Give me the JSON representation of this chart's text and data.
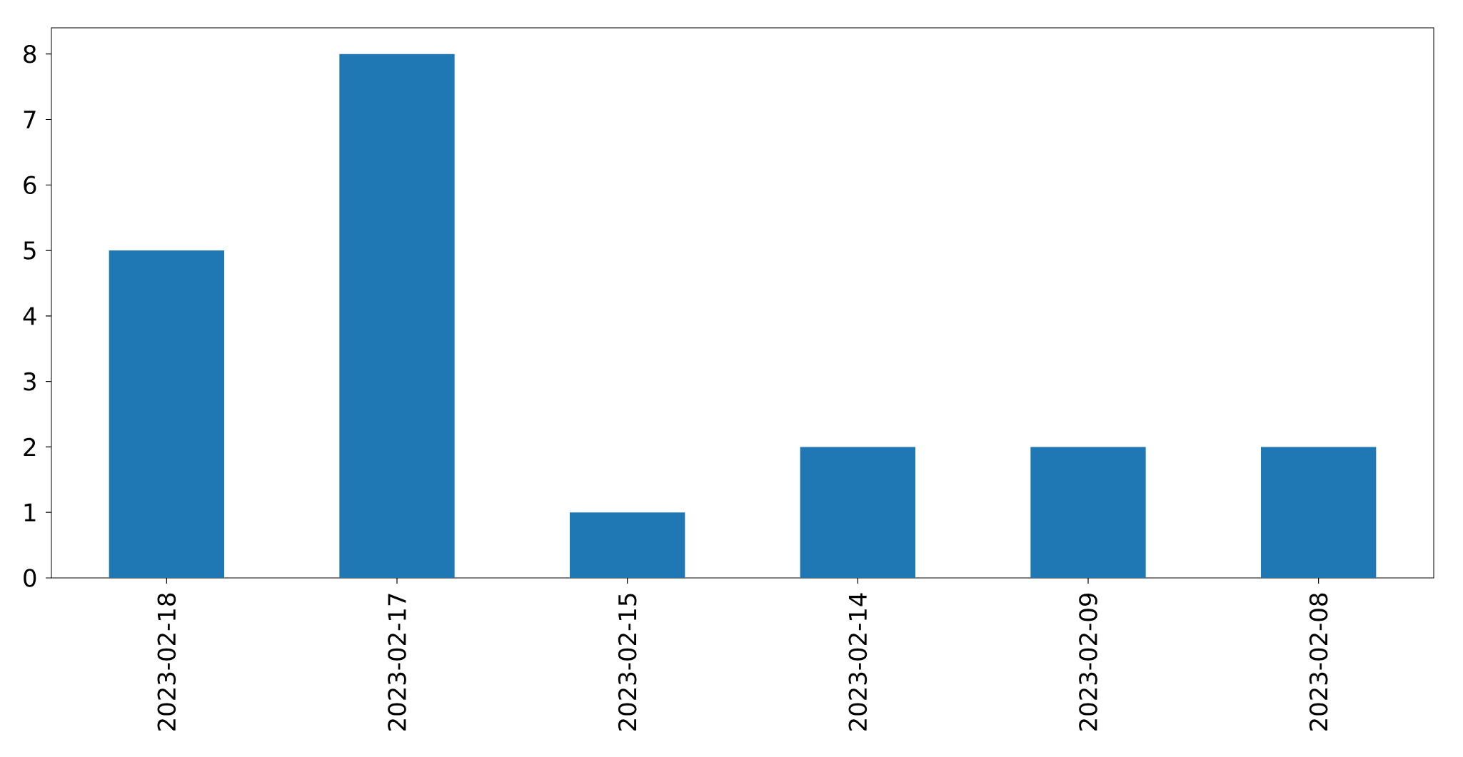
{
  "chart_data": {
    "type": "bar",
    "categories": [
      "2023-02-18",
      "2023-02-17",
      "2023-02-15",
      "2023-02-14",
      "2023-02-09",
      "2023-02-08"
    ],
    "values": [
      5,
      8,
      1,
      2,
      2,
      2
    ],
    "color": "#1f77b4",
    "ylim": [
      0,
      8.4
    ],
    "yticks": [
      0,
      1,
      2,
      3,
      4,
      5,
      6,
      7,
      8
    ]
  }
}
